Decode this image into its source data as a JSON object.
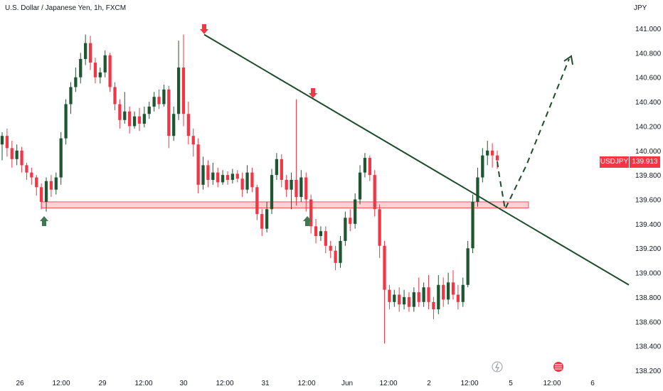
{
  "header": {
    "title": "U.S. Dollar / Japanese Yen, 1h, FXCM",
    "currency": "JPY"
  },
  "badge": {
    "symbol": "USDJPY",
    "price": "139.913"
  },
  "colors": {
    "up": "#1e5631",
    "down": "#f23645",
    "trend": "#1e4d2b",
    "zone_fill": "#f8c9cf",
    "zone_stroke": "#f23645"
  },
  "chart_data": {
    "type": "candlestick",
    "title": "U.S. Dollar / Japanese Yen, 1h, FXCM",
    "ylim": [
      138.2,
      141.1
    ],
    "y_ticks": [
      "141.000",
      "140.800",
      "140.600",
      "140.400",
      "140.200",
      "140.000",
      "139.800",
      "139.600",
      "139.400",
      "139.200",
      "139.000",
      "138.800",
      "138.600",
      "138.400",
      "138.200"
    ],
    "x_ticks": [
      "26",
      "12:00",
      "29",
      "12:00",
      "30",
      "12:00",
      "31",
      "12:00",
      "Jun",
      "12:00",
      "2",
      "12:00",
      "5",
      "12:00",
      "6"
    ],
    "last_price": 139.913,
    "trendline": {
      "from_price": 140.95,
      "to_price": 138.9
    },
    "support_zone": [
      139.53,
      139.58
    ],
    "projection": [
      139.91,
      139.79,
      139.52,
      139.88,
      140.75
    ],
    "candles": [
      [
        140.05,
        140.12,
        140.15,
        139.92
      ],
      [
        140.12,
        140.02,
        140.18,
        139.95
      ],
      [
        140.02,
        139.93,
        140.08,
        139.86
      ],
      [
        139.93,
        140.0,
        140.05,
        139.88
      ],
      [
        140.0,
        139.88,
        140.03,
        139.82
      ],
      [
        139.88,
        139.82,
        139.9,
        139.76
      ],
      [
        139.82,
        139.78,
        139.86,
        139.72
      ],
      [
        139.78,
        139.7,
        139.8,
        139.63
      ],
      [
        139.7,
        139.58,
        139.73,
        139.52
      ],
      [
        139.58,
        139.75,
        139.78,
        139.5
      ],
      [
        139.75,
        139.68,
        139.8,
        139.62
      ],
      [
        139.68,
        139.78,
        139.82,
        139.64
      ],
      [
        139.78,
        140.1,
        140.15,
        139.72
      ],
      [
        140.1,
        140.38,
        140.42,
        140.05
      ],
      [
        140.38,
        140.52,
        140.56,
        140.3
      ],
      [
        140.52,
        140.6,
        140.68,
        140.48
      ],
      [
        140.6,
        140.75,
        140.8,
        140.55
      ],
      [
        140.75,
        140.88,
        140.95,
        140.7
      ],
      [
        140.88,
        140.72,
        140.94,
        140.66
      ],
      [
        140.72,
        140.6,
        140.76,
        140.55
      ],
      [
        140.6,
        140.64,
        140.68,
        140.55
      ],
      [
        140.64,
        140.78,
        140.82,
        140.6
      ],
      [
        140.78,
        140.52,
        140.8,
        140.48
      ],
      [
        140.52,
        140.38,
        140.56,
        140.33
      ],
      [
        140.38,
        140.25,
        140.42,
        140.18
      ],
      [
        140.25,
        140.32,
        140.48,
        140.22
      ],
      [
        140.32,
        140.2,
        140.36,
        140.14
      ],
      [
        140.2,
        140.28,
        140.32,
        140.18
      ],
      [
        140.28,
        140.22,
        140.35,
        140.16
      ],
      [
        140.22,
        140.3,
        140.36,
        140.19
      ],
      [
        140.3,
        140.36,
        140.4,
        140.26
      ],
      [
        140.36,
        140.44,
        140.48,
        140.32
      ],
      [
        140.44,
        140.38,
        140.5,
        140.34
      ],
      [
        140.38,
        140.5,
        140.54,
        140.36
      ],
      [
        140.5,
        140.12,
        140.53,
        140.02
      ],
      [
        140.12,
        140.3,
        140.36,
        140.08
      ],
      [
        140.3,
        140.68,
        140.9,
        140.25
      ],
      [
        140.68,
        140.3,
        140.95,
        140.2
      ],
      [
        140.3,
        140.12,
        140.4,
        140.05
      ],
      [
        140.12,
        140.05,
        140.18,
        139.95
      ],
      [
        140.05,
        139.72,
        140.1,
        139.65
      ],
      [
        139.72,
        139.88,
        139.95,
        139.68
      ],
      [
        139.88,
        139.76,
        139.92,
        139.7
      ],
      [
        139.76,
        139.82,
        139.9,
        139.72
      ],
      [
        139.82,
        139.74,
        139.86,
        139.7
      ],
      [
        139.74,
        139.8,
        139.84,
        139.72
      ],
      [
        139.8,
        139.76,
        139.83,
        139.72
      ],
      [
        139.76,
        139.81,
        139.85,
        139.73
      ],
      [
        139.81,
        139.77,
        139.84,
        139.74
      ],
      [
        139.77,
        139.68,
        139.82,
        139.62
      ],
      [
        139.68,
        139.82,
        139.88,
        139.65
      ],
      [
        139.82,
        139.7,
        139.86,
        139.66
      ],
      [
        139.7,
        139.48,
        139.72,
        139.43
      ],
      [
        139.48,
        139.36,
        139.52,
        139.3
      ],
      [
        139.36,
        139.52,
        139.58,
        139.33
      ],
      [
        139.52,
        139.8,
        139.85,
        139.48
      ],
      [
        139.8,
        139.93,
        139.98,
        139.76
      ],
      [
        139.93,
        139.76,
        139.97,
        139.7
      ],
      [
        139.76,
        139.68,
        139.8,
        139.62
      ],
      [
        139.68,
        139.76,
        139.82,
        139.52
      ],
      [
        139.76,
        139.62,
        140.42,
        139.55
      ],
      [
        139.62,
        139.78,
        139.84,
        139.58
      ],
      [
        139.78,
        139.6,
        139.82,
        139.5
      ],
      [
        139.6,
        139.38,
        139.64,
        139.32
      ],
      [
        139.38,
        139.3,
        139.44,
        139.24
      ],
      [
        139.3,
        139.34,
        139.38,
        139.26
      ],
      [
        139.34,
        139.22,
        139.38,
        139.16
      ],
      [
        139.22,
        139.18,
        139.26,
        139.12
      ],
      [
        139.18,
        139.08,
        139.22,
        139.02
      ],
      [
        139.08,
        139.26,
        139.3,
        139.04
      ],
      [
        139.26,
        139.45,
        139.5,
        139.22
      ],
      [
        139.45,
        139.4,
        139.52,
        139.34
      ],
      [
        139.4,
        139.6,
        139.65,
        139.36
      ],
      [
        139.6,
        139.82,
        139.88,
        139.56
      ],
      [
        139.82,
        139.94,
        139.98,
        139.78
      ],
      [
        139.94,
        139.8,
        139.96,
        139.75
      ],
      [
        139.8,
        139.52,
        139.84,
        139.46
      ],
      [
        139.52,
        139.22,
        139.56,
        139.12
      ],
      [
        139.22,
        138.86,
        139.26,
        138.42
      ],
      [
        138.86,
        138.76,
        138.9,
        138.7
      ],
      [
        138.76,
        138.82,
        138.86,
        138.72
      ],
      [
        138.82,
        138.74,
        138.88,
        138.68
      ],
      [
        138.74,
        138.8,
        138.86,
        138.7
      ],
      [
        138.8,
        138.72,
        138.84,
        138.68
      ],
      [
        138.72,
        138.84,
        138.88,
        138.68
      ],
      [
        138.84,
        138.76,
        138.96,
        138.72
      ],
      [
        138.76,
        138.88,
        138.92,
        138.72
      ],
      [
        138.88,
        138.76,
        138.98,
        138.7
      ],
      [
        138.76,
        138.7,
        138.8,
        138.62
      ],
      [
        138.7,
        138.9,
        138.98,
        138.66
      ],
      [
        138.9,
        138.78,
        138.96,
        138.72
      ],
      [
        138.78,
        138.92,
        139.0,
        138.74
      ],
      [
        138.92,
        138.82,
        139.02,
        138.78
      ],
      [
        138.82,
        138.76,
        138.9,
        138.7
      ],
      [
        138.76,
        138.9,
        138.96,
        138.72
      ],
      [
        138.9,
        139.2,
        139.26,
        138.88
      ],
      [
        139.2,
        139.58,
        139.64,
        139.16
      ],
      [
        139.58,
        139.78,
        139.86,
        139.54
      ],
      [
        139.78,
        139.96,
        140.02,
        139.74
      ],
      [
        139.96,
        140.0,
        140.08,
        139.88
      ],
      [
        140.0,
        139.96,
        140.06,
        139.86
      ],
      [
        139.96,
        139.92,
        140.0,
        139.85
      ]
    ]
  }
}
